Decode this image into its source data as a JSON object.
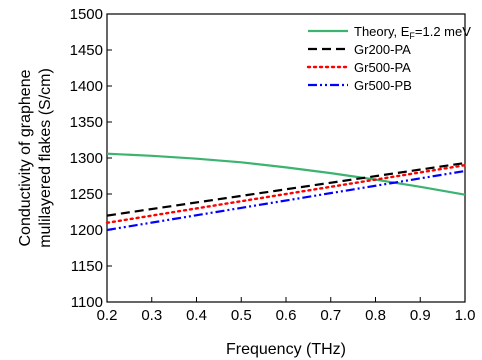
{
  "chart_data": {
    "type": "line",
    "xlabel": "Frequency (THz)",
    "ylabel_lines": [
      "Conductivity of graphene",
      "mulilayered flakes (S/cm)"
    ],
    "xlim": [
      0.2,
      1.0
    ],
    "ylim": [
      1100,
      1500
    ],
    "xticks": [
      "0.2",
      "0.3",
      "0.4",
      "0.5",
      "0.6",
      "0.7",
      "0.8",
      "0.9",
      "1.0"
    ],
    "yticks": [
      "1100",
      "1150",
      "1200",
      "1250",
      "1300",
      "1350",
      "1400",
      "1450",
      "1500"
    ],
    "grid": false,
    "legend_position": "top-right",
    "series": [
      {
        "name": "Theory, E",
        "name_sub": "F",
        "name_tail": "=1.2 meV",
        "color": "#3cb371",
        "style": "solid",
        "x": [
          0.2,
          0.3,
          0.4,
          0.5,
          0.6,
          0.7,
          0.8,
          0.9,
          1.0
        ],
        "values": [
          1306,
          1303,
          1299,
          1294,
          1287,
          1279,
          1270,
          1260,
          1249
        ]
      },
      {
        "name": "Gr200-PA",
        "color": "#000000",
        "style": "dash",
        "x": [
          0.2,
          1.0
        ],
        "values": [
          1220,
          1293
        ]
      },
      {
        "name": "Gr500-PA",
        "color": "#ff0000",
        "style": "dot",
        "x": [
          0.2,
          1.0
        ],
        "values": [
          1210,
          1290
        ]
      },
      {
        "name": "Gr500-PB",
        "color": "#0000ff",
        "style": "dashdotdot",
        "x": [
          0.2,
          1.0
        ],
        "values": [
          1200,
          1282
        ]
      }
    ]
  }
}
